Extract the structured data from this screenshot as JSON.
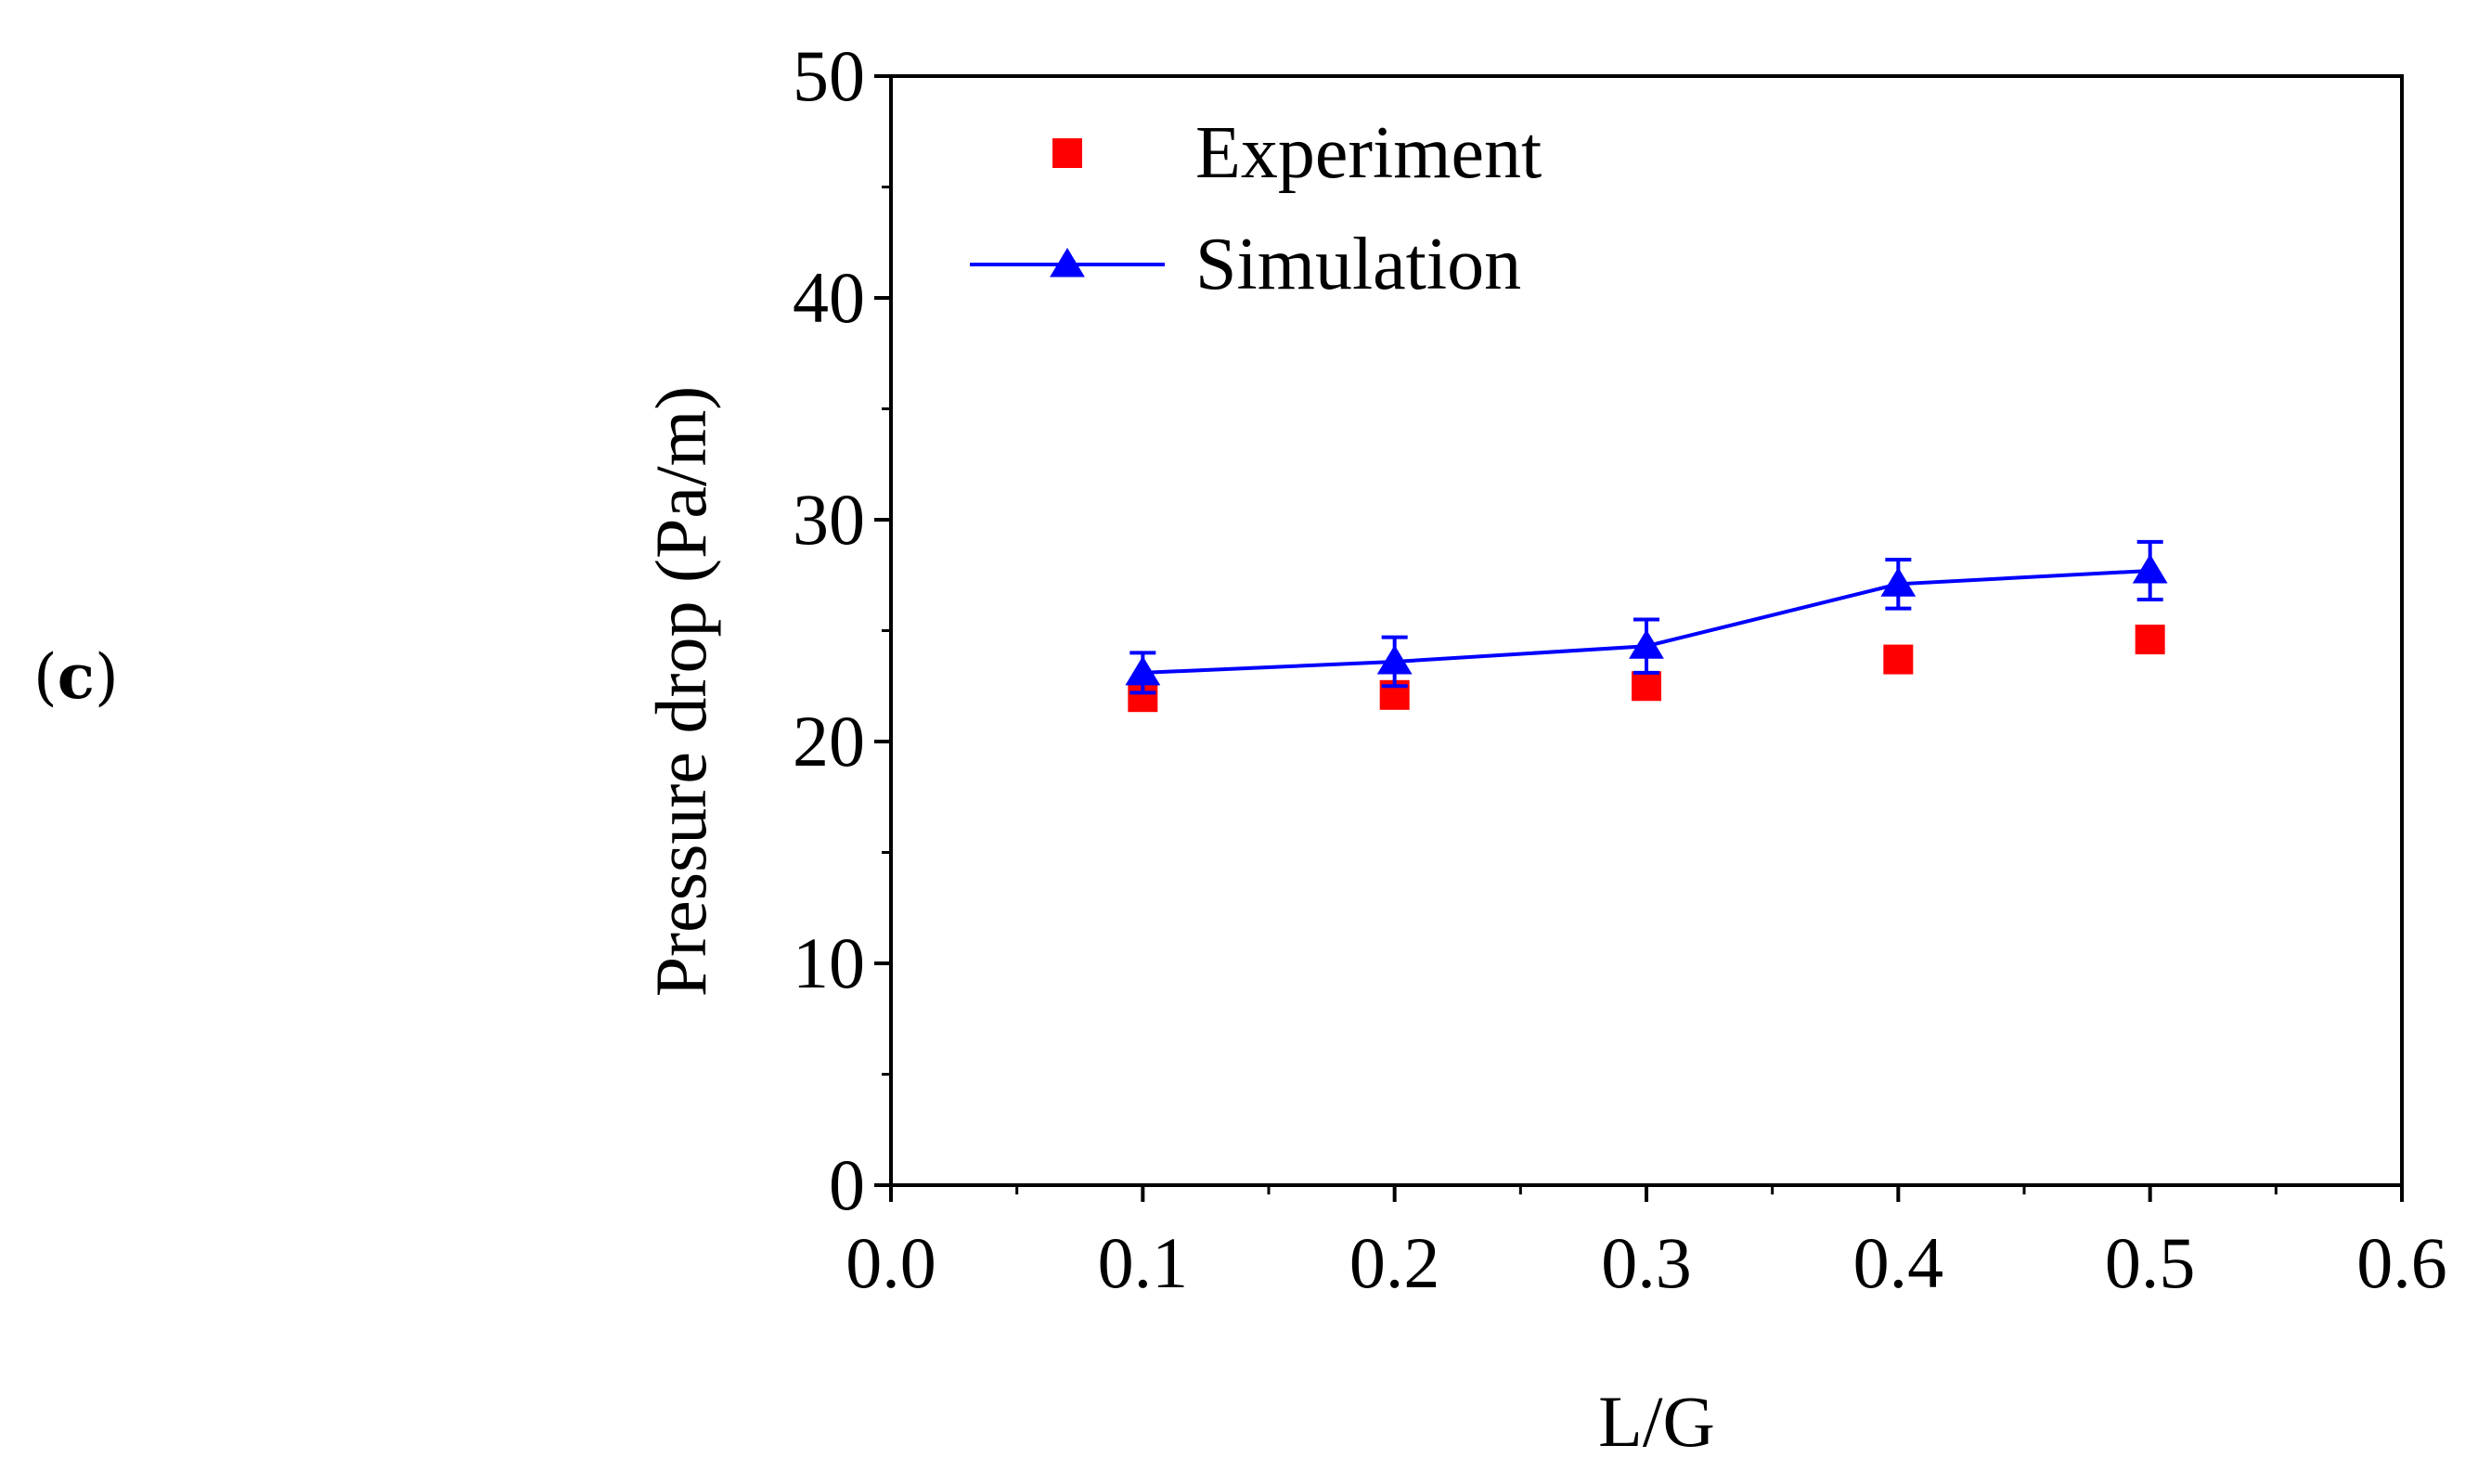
{
  "panel_label": {
    "open": "(",
    "letter": "c",
    "close": ")"
  },
  "chart_data": {
    "type": "scatter",
    "xlabel": "L/G",
    "ylabel": "Pressure drop (Pa/m)",
    "xlim": [
      0.0,
      0.6
    ],
    "ylim": [
      0,
      50
    ],
    "x_ticks": [
      0.0,
      0.1,
      0.2,
      0.3,
      0.4,
      0.5,
      0.6
    ],
    "x_tick_labels": [
      "0.0",
      "0.1",
      "0.2",
      "0.3",
      "0.4",
      "0.5",
      "0.6"
    ],
    "y_ticks": [
      0,
      10,
      20,
      30,
      40,
      50
    ],
    "y_tick_labels": [
      "0",
      "10",
      "20",
      "30",
      "40",
      "50"
    ],
    "grid": false,
    "legend_position": "top-left",
    "series": [
      {
        "name": "Experiment",
        "marker": "square",
        "line": false,
        "color": "#ff0000",
        "x": [
          0.1,
          0.2,
          0.3,
          0.4,
          0.5
        ],
        "y": [
          22.0,
          22.1,
          22.5,
          23.7,
          24.6
        ],
        "error": [
          0.3,
          0.3,
          0.3,
          0.4,
          0.4
        ]
      },
      {
        "name": "Simulation",
        "marker": "triangle",
        "line": true,
        "color": "#0000ff",
        "x": [
          0.1,
          0.2,
          0.3,
          0.4,
          0.5
        ],
        "y": [
          23.1,
          23.6,
          24.3,
          27.1,
          27.7
        ],
        "error": [
          0.9,
          1.1,
          1.2,
          1.1,
          1.3
        ]
      }
    ]
  }
}
